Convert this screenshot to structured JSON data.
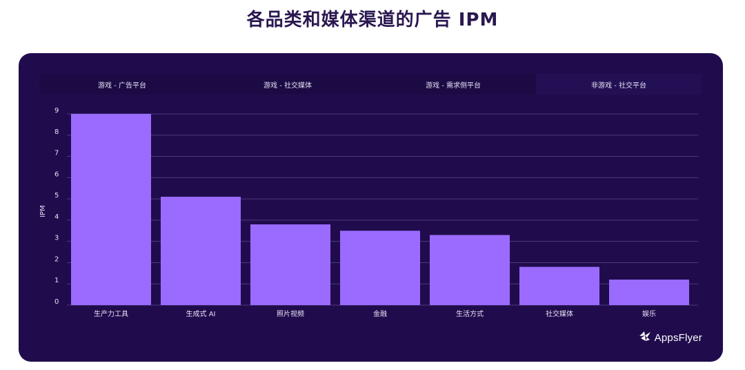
{
  "page": {
    "title": "各品类和媒体渠道的广告 IPM"
  },
  "tabs": [
    {
      "label": "游戏 - 广告平台",
      "active": false
    },
    {
      "label": "游戏 - 社交媒体",
      "active": false
    },
    {
      "label": "游戏 - 需求侧平台",
      "active": false
    },
    {
      "label": "非游戏 - 社交平台",
      "active": true
    }
  ],
  "brand": {
    "name": "AppsFlyer",
    "logo_icon": "appsflyer-bird-icon"
  },
  "colors": {
    "background": "#200c4d",
    "bar": "#9b6bff",
    "grid": "#4c3a7a",
    "text": "#e8e2f6",
    "title": "#2a1750"
  },
  "chart_data": {
    "type": "bar",
    "categories": [
      "生产力工具",
      "生成式 AI",
      "照片视频",
      "金融",
      "生活方式",
      "社交媒体",
      "娱乐"
    ],
    "values": [
      9.0,
      5.1,
      3.8,
      3.5,
      3.3,
      1.8,
      1.2
    ],
    "ylabel": "IPM",
    "xlabel": "",
    "ylim": [
      0,
      9
    ],
    "yticks": [
      0,
      1,
      2,
      3,
      4,
      5,
      6,
      7,
      8,
      9
    ],
    "grid": true,
    "legend": "none"
  }
}
